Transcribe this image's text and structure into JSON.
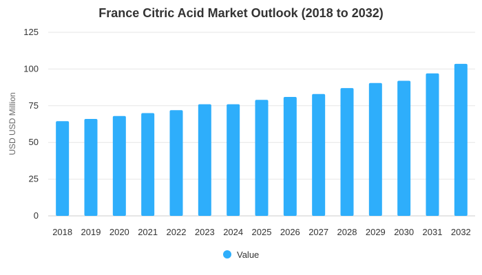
{
  "chart_data": {
    "type": "bar",
    "title": "France Citric Acid Market Outlook (2018 to 2032)",
    "xlabel": "",
    "ylabel": "USD USD Million",
    "categories": [
      "2018",
      "2019",
      "2020",
      "2021",
      "2022",
      "2023",
      "2024",
      "2025",
      "2026",
      "2027",
      "2028",
      "2029",
      "2030",
      "2031",
      "2032"
    ],
    "series": [
      {
        "name": "Value",
        "color": "#2eaefb",
        "values": [
          64.5,
          66,
          68,
          70,
          72,
          76,
          76,
          79,
          81,
          83,
          87,
          90.5,
          92,
          97,
          103.5
        ]
      }
    ],
    "ylim": [
      0,
      125
    ],
    "yticks": [
      0,
      25,
      50,
      75,
      100,
      125
    ],
    "grid": true,
    "legend": "bottom"
  }
}
